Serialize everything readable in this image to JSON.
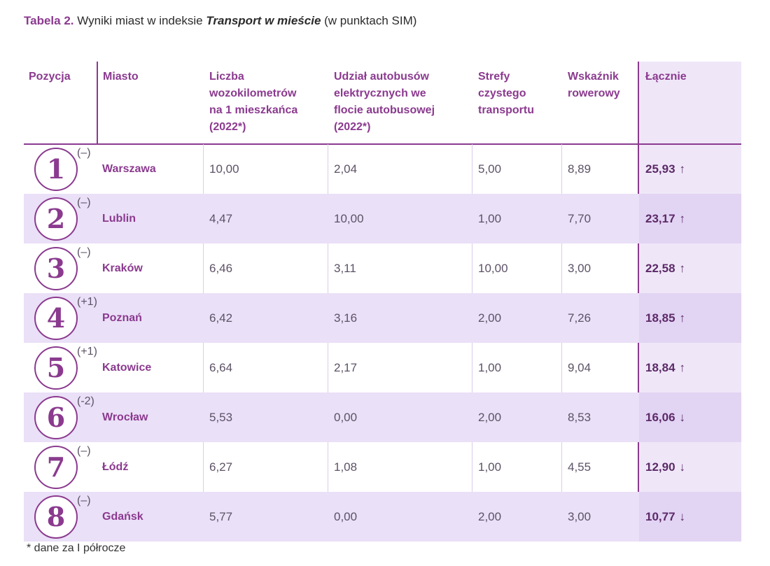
{
  "caption": {
    "label": "Tabela 2.",
    "text_before": "Wyniki miast w indeksie",
    "italic": "Transport w mieście",
    "text_after": "(w punktach SIM)"
  },
  "headers": {
    "position": "Pozycja",
    "city": "Miasto",
    "vehicle_km": [
      "Liczba",
      "wozokilometrów",
      "na 1 mieszkańca",
      "(2022*)"
    ],
    "electric_buses": [
      "Udział autobusów",
      "elektrycznych we",
      "flocie autobusowej",
      "(2022*)"
    ],
    "clean_zones": [
      "Strefy",
      "czystego",
      "transportu"
    ],
    "bike_index": [
      "Wskaźnik",
      "rowerowy"
    ],
    "total": "Łącznie"
  },
  "rows": [
    {
      "rank": "1",
      "change": "(–)",
      "city": "Warszawa",
      "vehicle_km": "10,00",
      "electric_buses": "2,04",
      "clean_zones": "5,00",
      "bike_index": "8,89",
      "total": "25,93",
      "trend": "↑"
    },
    {
      "rank": "2",
      "change": "(–)",
      "city": "Lublin",
      "vehicle_km": "4,47",
      "electric_buses": "10,00",
      "clean_zones": "1,00",
      "bike_index": "7,70",
      "total": "23,17",
      "trend": "↑"
    },
    {
      "rank": "3",
      "change": "(–)",
      "city": "Kraków",
      "vehicle_km": "6,46",
      "electric_buses": "3,11",
      "clean_zones": "10,00",
      "bike_index": "3,00",
      "total": "22,58",
      "trend": "↑"
    },
    {
      "rank": "4",
      "change": "(+1)",
      "city": "Poznań",
      "vehicle_km": "6,42",
      "electric_buses": "3,16",
      "clean_zones": "2,00",
      "bike_index": "7,26",
      "total": "18,85",
      "trend": "↑"
    },
    {
      "rank": "5",
      "change": "(+1)",
      "city": "Katowice",
      "vehicle_km": "6,64",
      "electric_buses": "2,17",
      "clean_zones": "1,00",
      "bike_index": "9,04",
      "total": "18,84",
      "trend": "↑"
    },
    {
      "rank": "6",
      "change": "(-2)",
      "city": "Wrocław",
      "vehicle_km": "5,53",
      "electric_buses": "0,00",
      "clean_zones": "2,00",
      "bike_index": "8,53",
      "total": "16,06",
      "trend": "↓"
    },
    {
      "rank": "7",
      "change": "(–)",
      "city": "Łódź",
      "vehicle_km": "6,27",
      "electric_buses": "1,08",
      "clean_zones": "1,00",
      "bike_index": "4,55",
      "total": "12,90",
      "trend": "↓"
    },
    {
      "rank": "8",
      "change": "(–)",
      "city": "Gdańsk",
      "vehicle_km": "5,77",
      "electric_buses": "0,00",
      "clean_zones": "2,00",
      "bike_index": "3,00",
      "total": "10,77",
      "trend": "↓"
    }
  ],
  "footnote": "* dane za I półrocze",
  "colors": {
    "accent": "#8b3a8f",
    "band": "#eae0f7",
    "total_column": "#efe7f8"
  }
}
